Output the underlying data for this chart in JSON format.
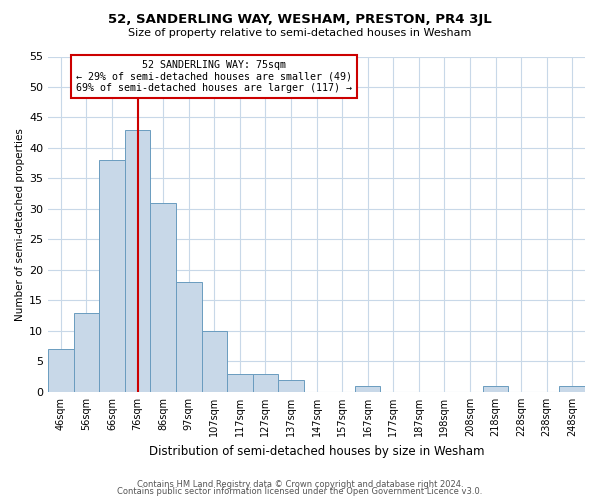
{
  "title": "52, SANDERLING WAY, WESHAM, PRESTON, PR4 3JL",
  "subtitle": "Size of property relative to semi-detached houses in Wesham",
  "xlabel": "Distribution of semi-detached houses by size in Wesham",
  "ylabel": "Number of semi-detached properties",
  "bin_labels": [
    "46sqm",
    "56sqm",
    "66sqm",
    "76sqm",
    "86sqm",
    "97sqm",
    "107sqm",
    "117sqm",
    "127sqm",
    "137sqm",
    "147sqm",
    "157sqm",
    "167sqm",
    "177sqm",
    "187sqm",
    "198sqm",
    "208sqm",
    "218sqm",
    "228sqm",
    "238sqm",
    "248sqm"
  ],
  "bar_values": [
    7,
    13,
    38,
    43,
    31,
    18,
    10,
    3,
    3,
    2,
    0,
    0,
    1,
    0,
    0,
    0,
    0,
    1,
    0,
    0,
    1
  ],
  "bar_color": "#c8d8e8",
  "bar_edge_color": "#6a9cbf",
  "ylim": [
    0,
    55
  ],
  "yticks": [
    0,
    5,
    10,
    15,
    20,
    25,
    30,
    35,
    40,
    45,
    50,
    55
  ],
  "annotation_title": "52 SANDERLING WAY: 75sqm",
  "annotation_line1": "← 29% of semi-detached houses are smaller (49)",
  "annotation_line2": "69% of semi-detached houses are larger (117) →",
  "annotation_box_color": "#cc0000",
  "property_line_bin": 3,
  "footer_line1": "Contains HM Land Registry data © Crown copyright and database right 2024.",
  "footer_line2": "Contains public sector information licensed under the Open Government Licence v3.0.",
  "background_color": "#ffffff",
  "grid_color": "#c8d8e8"
}
